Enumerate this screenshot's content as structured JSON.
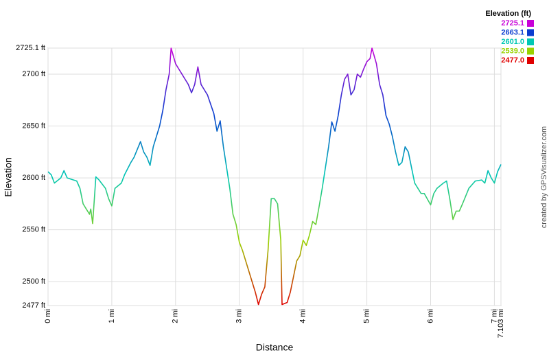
{
  "chart_data": {
    "type": "line",
    "xlabel": "Distance",
    "ylabel": "Elevation",
    "credit": "created by GPSVisualizer.com",
    "legend_title": "Elevation (ft)",
    "color_scale": [
      {
        "value": 2725.1,
        "label": "2725.1",
        "color": "#c800d8"
      },
      {
        "value": 2663.1,
        "label": "2663.1",
        "color": "#0a3cd0"
      },
      {
        "value": 2601.0,
        "label": "2601.0",
        "color": "#00c8b4"
      },
      {
        "value": 2539.0,
        "label": "2539.0",
        "color": "#9ad200"
      },
      {
        "value": 2477.0,
        "label": "2477.0",
        "color": "#e00000"
      }
    ],
    "xlim": [
      0,
      7.103
    ],
    "ylim": [
      2477,
      2725.1
    ],
    "xticks": [
      {
        "value": 0,
        "label": "0 mi"
      },
      {
        "value": 1,
        "label": "1 mi"
      },
      {
        "value": 2,
        "label": "2 mi"
      },
      {
        "value": 3,
        "label": "3 mi"
      },
      {
        "value": 4,
        "label": "4 mi"
      },
      {
        "value": 5,
        "label": "5 mi"
      },
      {
        "value": 6,
        "label": "6 mi"
      },
      {
        "value": 7,
        "label": "7 mi"
      },
      {
        "value": 7.103,
        "label": "7.103 mi"
      }
    ],
    "yticks": [
      {
        "value": 2477,
        "label": "2477 ft"
      },
      {
        "value": 2500,
        "label": "2500 ft"
      },
      {
        "value": 2550,
        "label": "2550 ft"
      },
      {
        "value": 2600,
        "label": "2600 ft"
      },
      {
        "value": 2650,
        "label": "2650 ft"
      },
      {
        "value": 2700,
        "label": "2700 ft"
      },
      {
        "value": 2725.1,
        "label": "2725.1 ft"
      }
    ],
    "grid": true,
    "x": [
      0,
      0.05,
      0.1,
      0.2,
      0.25,
      0.3,
      0.4,
      0.45,
      0.5,
      0.55,
      0.6,
      0.65,
      0.67,
      0.7,
      0.75,
      0.8,
      0.9,
      0.95,
      1.0,
      1.05,
      1.15,
      1.2,
      1.3,
      1.35,
      1.45,
      1.5,
      1.55,
      1.6,
      1.65,
      1.75,
      1.8,
      1.85,
      1.9,
      1.93,
      2.0,
      2.05,
      2.1,
      2.15,
      2.2,
      2.25,
      2.3,
      2.35,
      2.4,
      2.45,
      2.5,
      2.6,
      2.65,
      2.7,
      2.75,
      2.8,
      2.85,
      2.9,
      2.95,
      3.0,
      3.05,
      3.1,
      3.15,
      3.2,
      3.25,
      3.3,
      3.35,
      3.4,
      3.45,
      3.5,
      3.55,
      3.6,
      3.65,
      3.67,
      3.75,
      3.8,
      3.85,
      3.9,
      3.95,
      4.0,
      4.05,
      4.1,
      4.15,
      4.2,
      4.25,
      4.3,
      4.35,
      4.4,
      4.45,
      4.5,
      4.55,
      4.6,
      4.65,
      4.7,
      4.75,
      4.8,
      4.85,
      4.9,
      4.95,
      5.0,
      5.05,
      5.08,
      5.15,
      5.2,
      5.25,
      5.3,
      5.35,
      5.4,
      5.45,
      5.5,
      5.55,
      5.6,
      5.65,
      5.7,
      5.75,
      5.8,
      5.85,
      5.9,
      6.0,
      6.05,
      6.1,
      6.2,
      6.25,
      6.3,
      6.35,
      6.4,
      6.45,
      6.5,
      6.6,
      6.7,
      6.8,
      6.85,
      6.9,
      6.95,
      7.0,
      7.05,
      7.103
    ],
    "values": [
      2606,
      2603,
      2595,
      2600,
      2607,
      2600,
      2598,
      2597,
      2590,
      2575,
      2570,
      2565,
      2570,
      2556,
      2601,
      2598,
      2590,
      2580,
      2573,
      2590,
      2595,
      2603,
      2615,
      2620,
      2635,
      2625,
      2620,
      2612,
      2630,
      2650,
      2665,
      2685,
      2700,
      2725,
      2710,
      2705,
      2700,
      2695,
      2690,
      2682,
      2690,
      2707,
      2690,
      2685,
      2680,
      2662,
      2645,
      2655,
      2630,
      2610,
      2590,
      2565,
      2555,
      2538,
      2530,
      2520,
      2510,
      2500,
      2490,
      2478,
      2488,
      2495,
      2530,
      2580,
      2580,
      2575,
      2540,
      2478,
      2480,
      2490,
      2505,
      2520,
      2525,
      2540,
      2535,
      2545,
      2558,
      2555,
      2572,
      2590,
      2610,
      2630,
      2654,
      2645,
      2660,
      2680,
      2695,
      2700,
      2680,
      2685,
      2700,
      2697,
      2705,
      2712,
      2715,
      2725,
      2710,
      2690,
      2680,
      2660,
      2652,
      2640,
      2625,
      2612,
      2615,
      2630,
      2625,
      2610,
      2595,
      2590,
      2585,
      2585,
      2574,
      2585,
      2590,
      2595,
      2597,
      2580,
      2560,
      2568,
      2568,
      2575,
      2590,
      2597,
      2598,
      2595,
      2607,
      2600,
      2595,
      2606,
      2613
    ]
  }
}
